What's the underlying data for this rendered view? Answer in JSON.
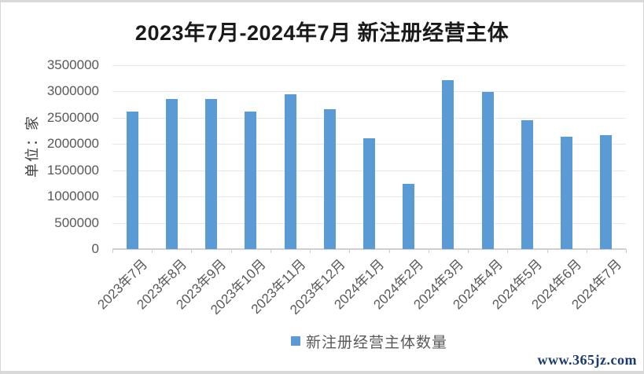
{
  "header": {
    "title": "2023年7月-2024年7月 新注册经营主体"
  },
  "y_axis": {
    "unit_label": "单位：家",
    "tick_labels": [
      "3500000",
      "3000000",
      "2500000",
      "2000000",
      "1500000",
      "1000000",
      "500000",
      "0"
    ]
  },
  "legend": {
    "label": "新注册经营主体数量",
    "swatch_color": "#5B9BD5"
  },
  "watermark": {
    "text": "www.365jz.com"
  },
  "colors": {
    "bar": "#5B9BD5",
    "gridline": "#E7E7E7",
    "axis_line": "#CFCFCF",
    "tick_text": "#595959",
    "title_text": "#1A1A1A",
    "watermark_text": "#1B3A6B"
  },
  "chart_data": {
    "type": "bar",
    "title": "2023年7月-2024年7月 新注册经营主体",
    "xlabel": "",
    "ylabel": "单位：家",
    "categories": [
      "2023年7月",
      "2023年8月",
      "2023年9月",
      "2023年10月",
      "2023年11月",
      "2023年12月",
      "2024年1月",
      "2024年2月",
      "2024年3月",
      "2024年4月",
      "2024年5月",
      "2024年6月",
      "2024年7月"
    ],
    "series": [
      {
        "name": "新注册经营主体数量",
        "values": [
          2620000,
          2860000,
          2850000,
          2620000,
          2950000,
          2670000,
          2110000,
          1240000,
          3220000,
          2990000,
          2450000,
          2140000,
          2170000
        ]
      }
    ],
    "ylim": [
      0,
      3500000
    ],
    "y_ticks": [
      0,
      500000,
      1000000,
      1500000,
      2000000,
      2500000,
      3000000,
      3500000
    ],
    "grid": true,
    "legend_position": "bottom",
    "bar_color": "#5B9BD5"
  }
}
